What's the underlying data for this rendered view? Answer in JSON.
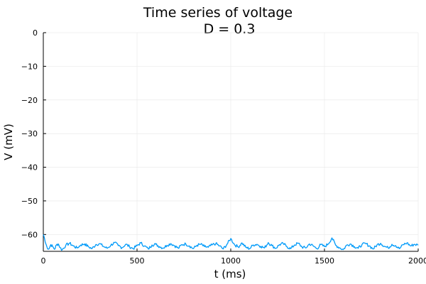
{
  "chart_data": {
    "type": "line",
    "title": "Time series of voltage",
    "subtitle": "D = 0.3",
    "xlabel": "t (ms)",
    "ylabel": "V (mV)",
    "xlim": [
      0,
      2000
    ],
    "ylim": [
      -65,
      0
    ],
    "xticks": [
      0,
      500,
      1000,
      1500,
      2000
    ],
    "xtick_labels": [
      "0",
      "500",
      "1000",
      "1500",
      "2000"
    ],
    "yticks": [
      0,
      -10,
      -20,
      -30,
      -40,
      -50,
      -60
    ],
    "ytick_labels": [
      "0",
      "−10",
      "−20",
      "−30",
      "−40",
      "−50",
      "−60"
    ],
    "grid": true,
    "legend": "none",
    "series": [
      {
        "color": "#009af9",
        "x": [
          0,
          5,
          10,
          20,
          30,
          40,
          50,
          60,
          70,
          80,
          90,
          100,
          120,
          140,
          160,
          180,
          200,
          220,
          240,
          260,
          280,
          300,
          320,
          340,
          360,
          380,
          400,
          420,
          440,
          460,
          480,
          500,
          520,
          540,
          560,
          580,
          600,
          620,
          640,
          660,
          680,
          700,
          720,
          740,
          760,
          780,
          800,
          820,
          840,
          860,
          880,
          900,
          920,
          940,
          960,
          980,
          1000,
          1020,
          1040,
          1060,
          1080,
          1100,
          1120,
          1140,
          1160,
          1180,
          1200,
          1220,
          1240,
          1260,
          1280,
          1300,
          1320,
          1340,
          1360,
          1380,
          1400,
          1420,
          1440,
          1460,
          1480,
          1500,
          1520,
          1540,
          1560,
          1580,
          1600,
          1620,
          1640,
          1660,
          1680,
          1700,
          1720,
          1740,
          1760,
          1780,
          1800,
          1820,
          1840,
          1860,
          1880,
          1900,
          1920,
          1940,
          1960,
          1980,
          2000
        ],
        "y": [
          -60.0,
          -60.8,
          -62.2,
          -63.8,
          -64.3,
          -63.0,
          -63.6,
          -64.4,
          -63.1,
          -62.8,
          -63.9,
          -64.6,
          -63.2,
          -62.6,
          -63.4,
          -64.0,
          -63.1,
          -62.8,
          -63.6,
          -64.2,
          -63.0,
          -62.7,
          -63.5,
          -64.1,
          -63.2,
          -62.4,
          -63.3,
          -63.9,
          -62.9,
          -63.6,
          -64.2,
          -63.3,
          -62.5,
          -63.4,
          -64.3,
          -63.1,
          -62.9,
          -63.6,
          -64.0,
          -63.2,
          -62.7,
          -63.3,
          -64.1,
          -63.0,
          -62.8,
          -63.4,
          -64.2,
          -63.2,
          -62.9,
          -63.6,
          -63.8,
          -63.1,
          -62.7,
          -63.4,
          -64.3,
          -62.9,
          -61.2,
          -63.0,
          -63.7,
          -62.5,
          -63.8,
          -64.2,
          -63.1,
          -62.9,
          -63.5,
          -64.0,
          -62.4,
          -63.3,
          -64.1,
          -63.0,
          -62.7,
          -63.6,
          -64.2,
          -63.1,
          -62.6,
          -63.7,
          -64.0,
          -62.8,
          -63.4,
          -64.2,
          -63.0,
          -63.6,
          -62.8,
          -61.0,
          -63.2,
          -63.9,
          -64.5,
          -63.1,
          -62.8,
          -63.6,
          -64.1,
          -63.0,
          -62.7,
          -63.4,
          -64.3,
          -63.1,
          -62.6,
          -63.5,
          -64.0,
          -62.9,
          -63.3,
          -64.2,
          -63.0,
          -62.5,
          -63.4,
          -62.9,
          -63.2
        ]
      }
    ]
  }
}
